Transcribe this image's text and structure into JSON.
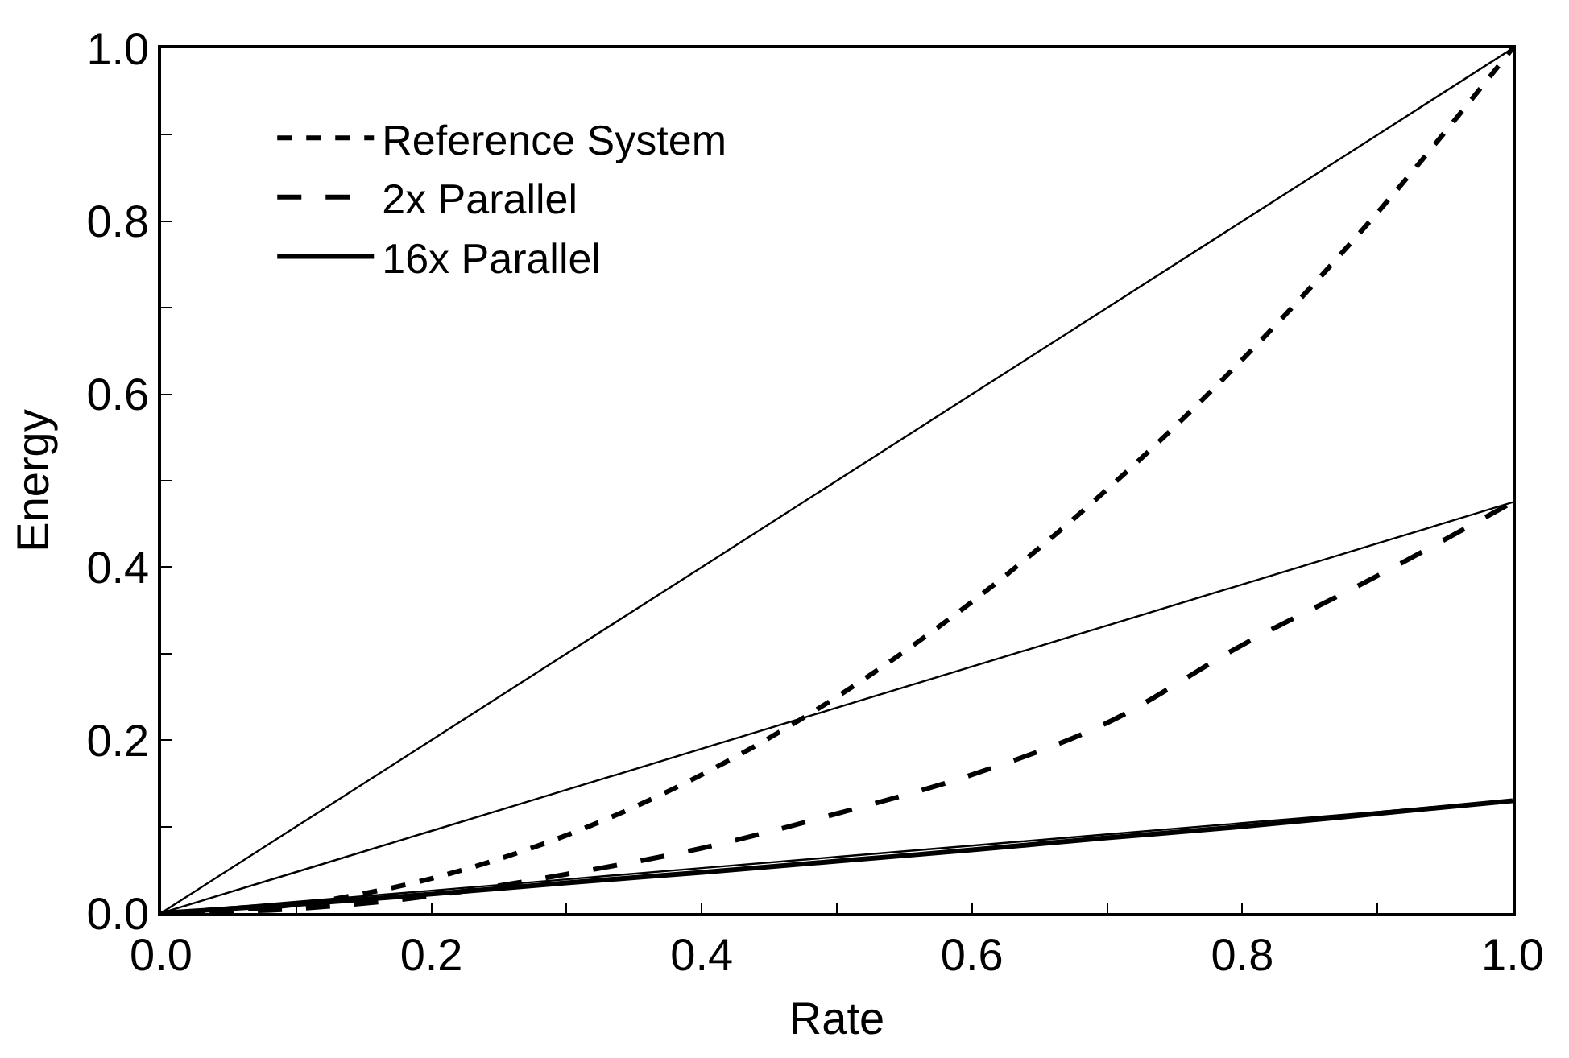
{
  "chart_data": {
    "type": "line",
    "xlabel": "Rate",
    "ylabel": "Energy",
    "x": [
      0,
      0.1,
      0.2,
      0.3,
      0.4,
      0.5,
      0.6,
      0.7,
      0.8,
      0.9,
      1.0
    ],
    "series": [
      {
        "name": "Reference System",
        "color": "#000000",
        "line_style": "dashed",
        "values": [
          0,
          0.01,
          0.04,
          0.09,
          0.16,
          0.25,
          0.36,
          0.49,
          0.64,
          0.81,
          1.0
        ]
      },
      {
        "name": "2x Parallel",
        "color": "#000000",
        "line_style": "longdash",
        "values": [
          0,
          0.005,
          0.02,
          0.045,
          0.075,
          0.115,
          0.16,
          0.22,
          0.31,
          0.39,
          0.475
        ]
      },
      {
        "name": "16x Parallel",
        "color": "#000000",
        "line_style": "solid",
        "values": [
          0,
          0.01,
          0.022,
          0.035,
          0.047,
          0.06,
          0.073,
          0.087,
          0.1,
          0.115,
          0.13
        ]
      },
      {
        "color": "#000000",
        "line_style": "solid",
        "values": [
          0,
          0.1,
          0.2,
          0.3,
          0.4,
          0.5,
          0.6,
          0.7,
          0.8,
          0.9,
          1.0
        ]
      },
      {
        "color": "#000000",
        "line_style": "solid",
        "values": [
          0,
          0.0475,
          0.095,
          0.1425,
          0.19,
          0.2375,
          0.285,
          0.3325,
          0.38,
          0.4275,
          0.475
        ]
      },
      {
        "color": "#000000",
        "line_style": "solid",
        "values": [
          0,
          0.013,
          0.026,
          0.039,
          0.052,
          0.065,
          0.078,
          0.091,
          0.104,
          0.117,
          0.13
        ]
      }
    ],
    "xlim": [
      0,
      1.0
    ],
    "ylim": [
      0,
      1.0
    ],
    "xticks": [
      {
        "value": 0,
        "label": "0.0"
      },
      {
        "value": 0.1,
        "label": null
      },
      0.2,
      {
        "value": 0.3,
        "label": null
      },
      0.4,
      {
        "value": 0.5,
        "label": null
      },
      0.6,
      {
        "value": 0.7,
        "label": null
      },
      0.8,
      {
        "value": 0.9,
        "label": null
      },
      {
        "value": 1.0,
        "label": "1.0"
      }
    ],
    "yticks": [
      {
        "value": 0,
        "label": "0.0"
      },
      {
        "value": 0.1,
        "label": null
      },
      0.2,
      {
        "value": 0.3,
        "label": null
      },
      0.4,
      {
        "value": 0.5,
        "label": null
      },
      0.6,
      {
        "value": 0.7,
        "label": null
      },
      0.8,
      {
        "value": 0.9,
        "label": null
      },
      {
        "value": 1.0,
        "label": "1.0"
      }
    ],
    "grid": false,
    "legend": "top left",
    "marker": "none"
  }
}
